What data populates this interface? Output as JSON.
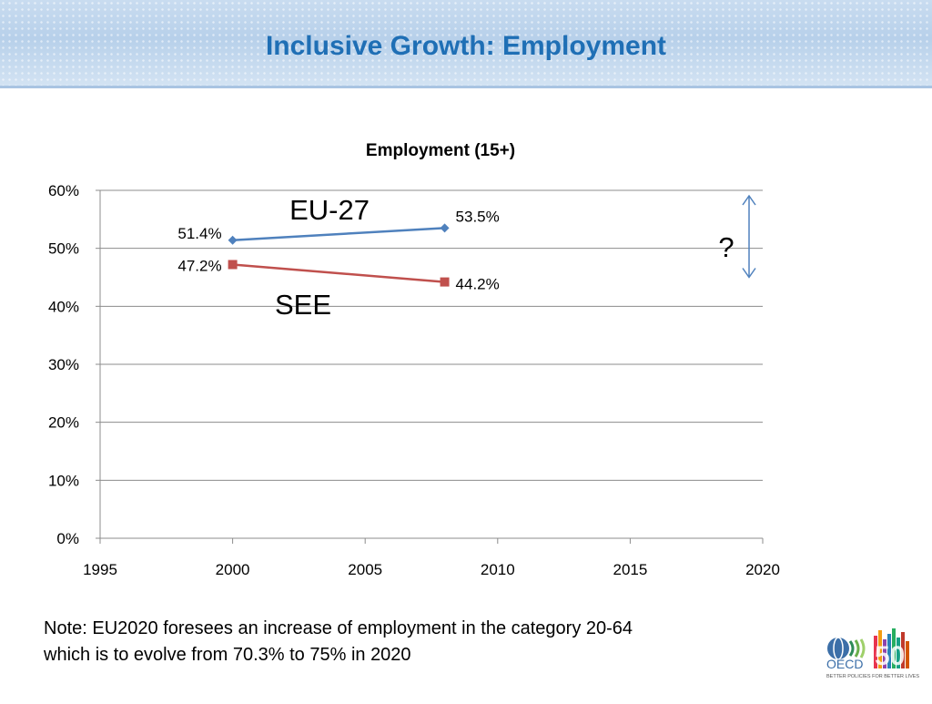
{
  "slide_title": "Inclusive Growth: Employment",
  "chart_data": {
    "type": "line",
    "title": "Employment (15+)",
    "xlabel": "",
    "ylabel": "",
    "xlim": [
      1995,
      2020
    ],
    "ylim": [
      0,
      60
    ],
    "x_ticks": [
      1995,
      2000,
      2005,
      2010,
      2015,
      2020
    ],
    "y_ticks": [
      0,
      10,
      20,
      30,
      40,
      50,
      60
    ],
    "x_tick_labels": [
      "1995",
      "2000",
      "2005",
      "2010",
      "2015",
      "2020"
    ],
    "y_tick_labels": [
      "0%",
      "10%",
      "20%",
      "30%",
      "40%",
      "50%",
      "60%"
    ],
    "grid": "horizontal",
    "series": [
      {
        "name": "EU-27",
        "color": "#4f81bd",
        "marker": "diamond",
        "x": [
          2000,
          2008
        ],
        "values": [
          51.4,
          53.5
        ],
        "data_labels": [
          "51.4%",
          "53.5%"
        ]
      },
      {
        "name": "SEE",
        "color": "#c0504d",
        "marker": "square",
        "x": [
          2000,
          2008
        ],
        "values": [
          47.2,
          44.2
        ],
        "data_labels": [
          "47.2%",
          "44.2%"
        ]
      }
    ],
    "annotation": {
      "text": "?",
      "arrow_from": 60,
      "arrow_to": 45,
      "arrow_color": "#4f81bd"
    }
  },
  "note": {
    "line1": "Note: EU2020 foresees an increase of employment in the category 20-64",
    "line2": "which is to evolve from 70.3% to 75% in 2020"
  },
  "logo": {
    "wordmark": "OECD",
    "number": "50",
    "tagline": "BETTER POLICIES FOR BETTER LIVES"
  }
}
